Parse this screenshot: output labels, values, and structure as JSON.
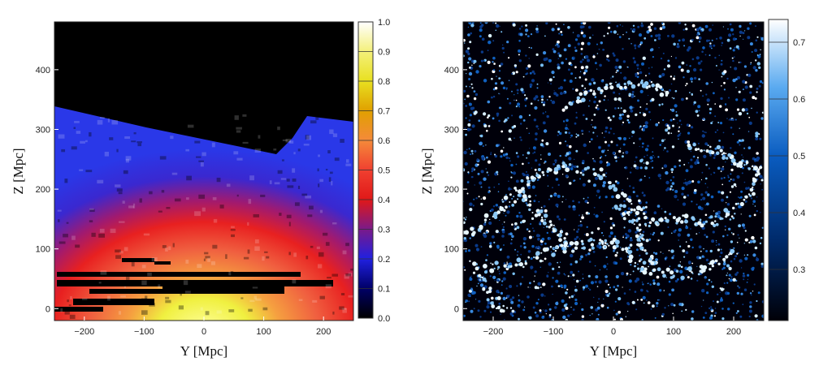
{
  "chart_data": [
    {
      "type": "heatmap",
      "title": "",
      "xlabel": "Y [Mpc]",
      "ylabel": "Z [Mpc]",
      "xlim": [
        -250,
        250
      ],
      "ylim": [
        -20,
        480
      ],
      "xticks": [
        -200,
        -100,
        0,
        100,
        200
      ],
      "yticks": [
        0,
        100,
        200,
        300,
        400
      ],
      "colorbar": {
        "min": 0.0,
        "max": 1.0,
        "ticks": [
          0.0,
          0.1,
          0.2,
          0.3,
          0.4,
          0.5,
          0.6,
          0.7,
          0.8,
          0.9,
          1.0
        ],
        "tick_labels": [
          "0.0",
          "0.1",
          "0.2",
          "0.3",
          "0.4",
          "0.5",
          "0.6",
          "0.7",
          "0.8",
          "0.9",
          "1.0"
        ],
        "colormap": [
          {
            "v": 0.0,
            "color": "#000000"
          },
          {
            "v": 0.1,
            "color": "#000066"
          },
          {
            "v": 0.2,
            "color": "#2020e0"
          },
          {
            "v": 0.3,
            "color": "#7a1a8a"
          },
          {
            "v": 0.4,
            "color": "#e01818"
          },
          {
            "v": 0.5,
            "color": "#f04030"
          },
          {
            "v": 0.6,
            "color": "#f58a3a"
          },
          {
            "v": 0.7,
            "color": "#e0a000"
          },
          {
            "v": 0.8,
            "color": "#e8e020"
          },
          {
            "v": 0.9,
            "color": "#f4f07a"
          },
          {
            "v": 1.0,
            "color": "#ffffff"
          }
        ]
      },
      "grid": false
    },
    {
      "type": "heatmap",
      "title": "",
      "xlabel": "Y [Mpc]",
      "ylabel": "Z [Mpc]",
      "xlim": [
        -250,
        250
      ],
      "ylim": [
        -20,
        480
      ],
      "xticks": [
        -200,
        -100,
        0,
        100,
        200
      ],
      "yticks": [
        0,
        100,
        200,
        300,
        400
      ],
      "colorbar": {
        "min": 0.21,
        "max": 0.74,
        "ticks": [
          0.3,
          0.4,
          0.5,
          0.6,
          0.7
        ],
        "tick_labels": [
          "0.3",
          "0.4",
          "0.5",
          "0.6",
          "0.7"
        ],
        "colormap": [
          {
            "v": 0.21,
            "color": "#000008"
          },
          {
            "v": 0.35,
            "color": "#002a6a"
          },
          {
            "v": 0.5,
            "color": "#0a5cc0"
          },
          {
            "v": 0.62,
            "color": "#5aaaf0"
          },
          {
            "v": 0.74,
            "color": "#ffffff"
          }
        ]
      },
      "grid": false
    }
  ]
}
